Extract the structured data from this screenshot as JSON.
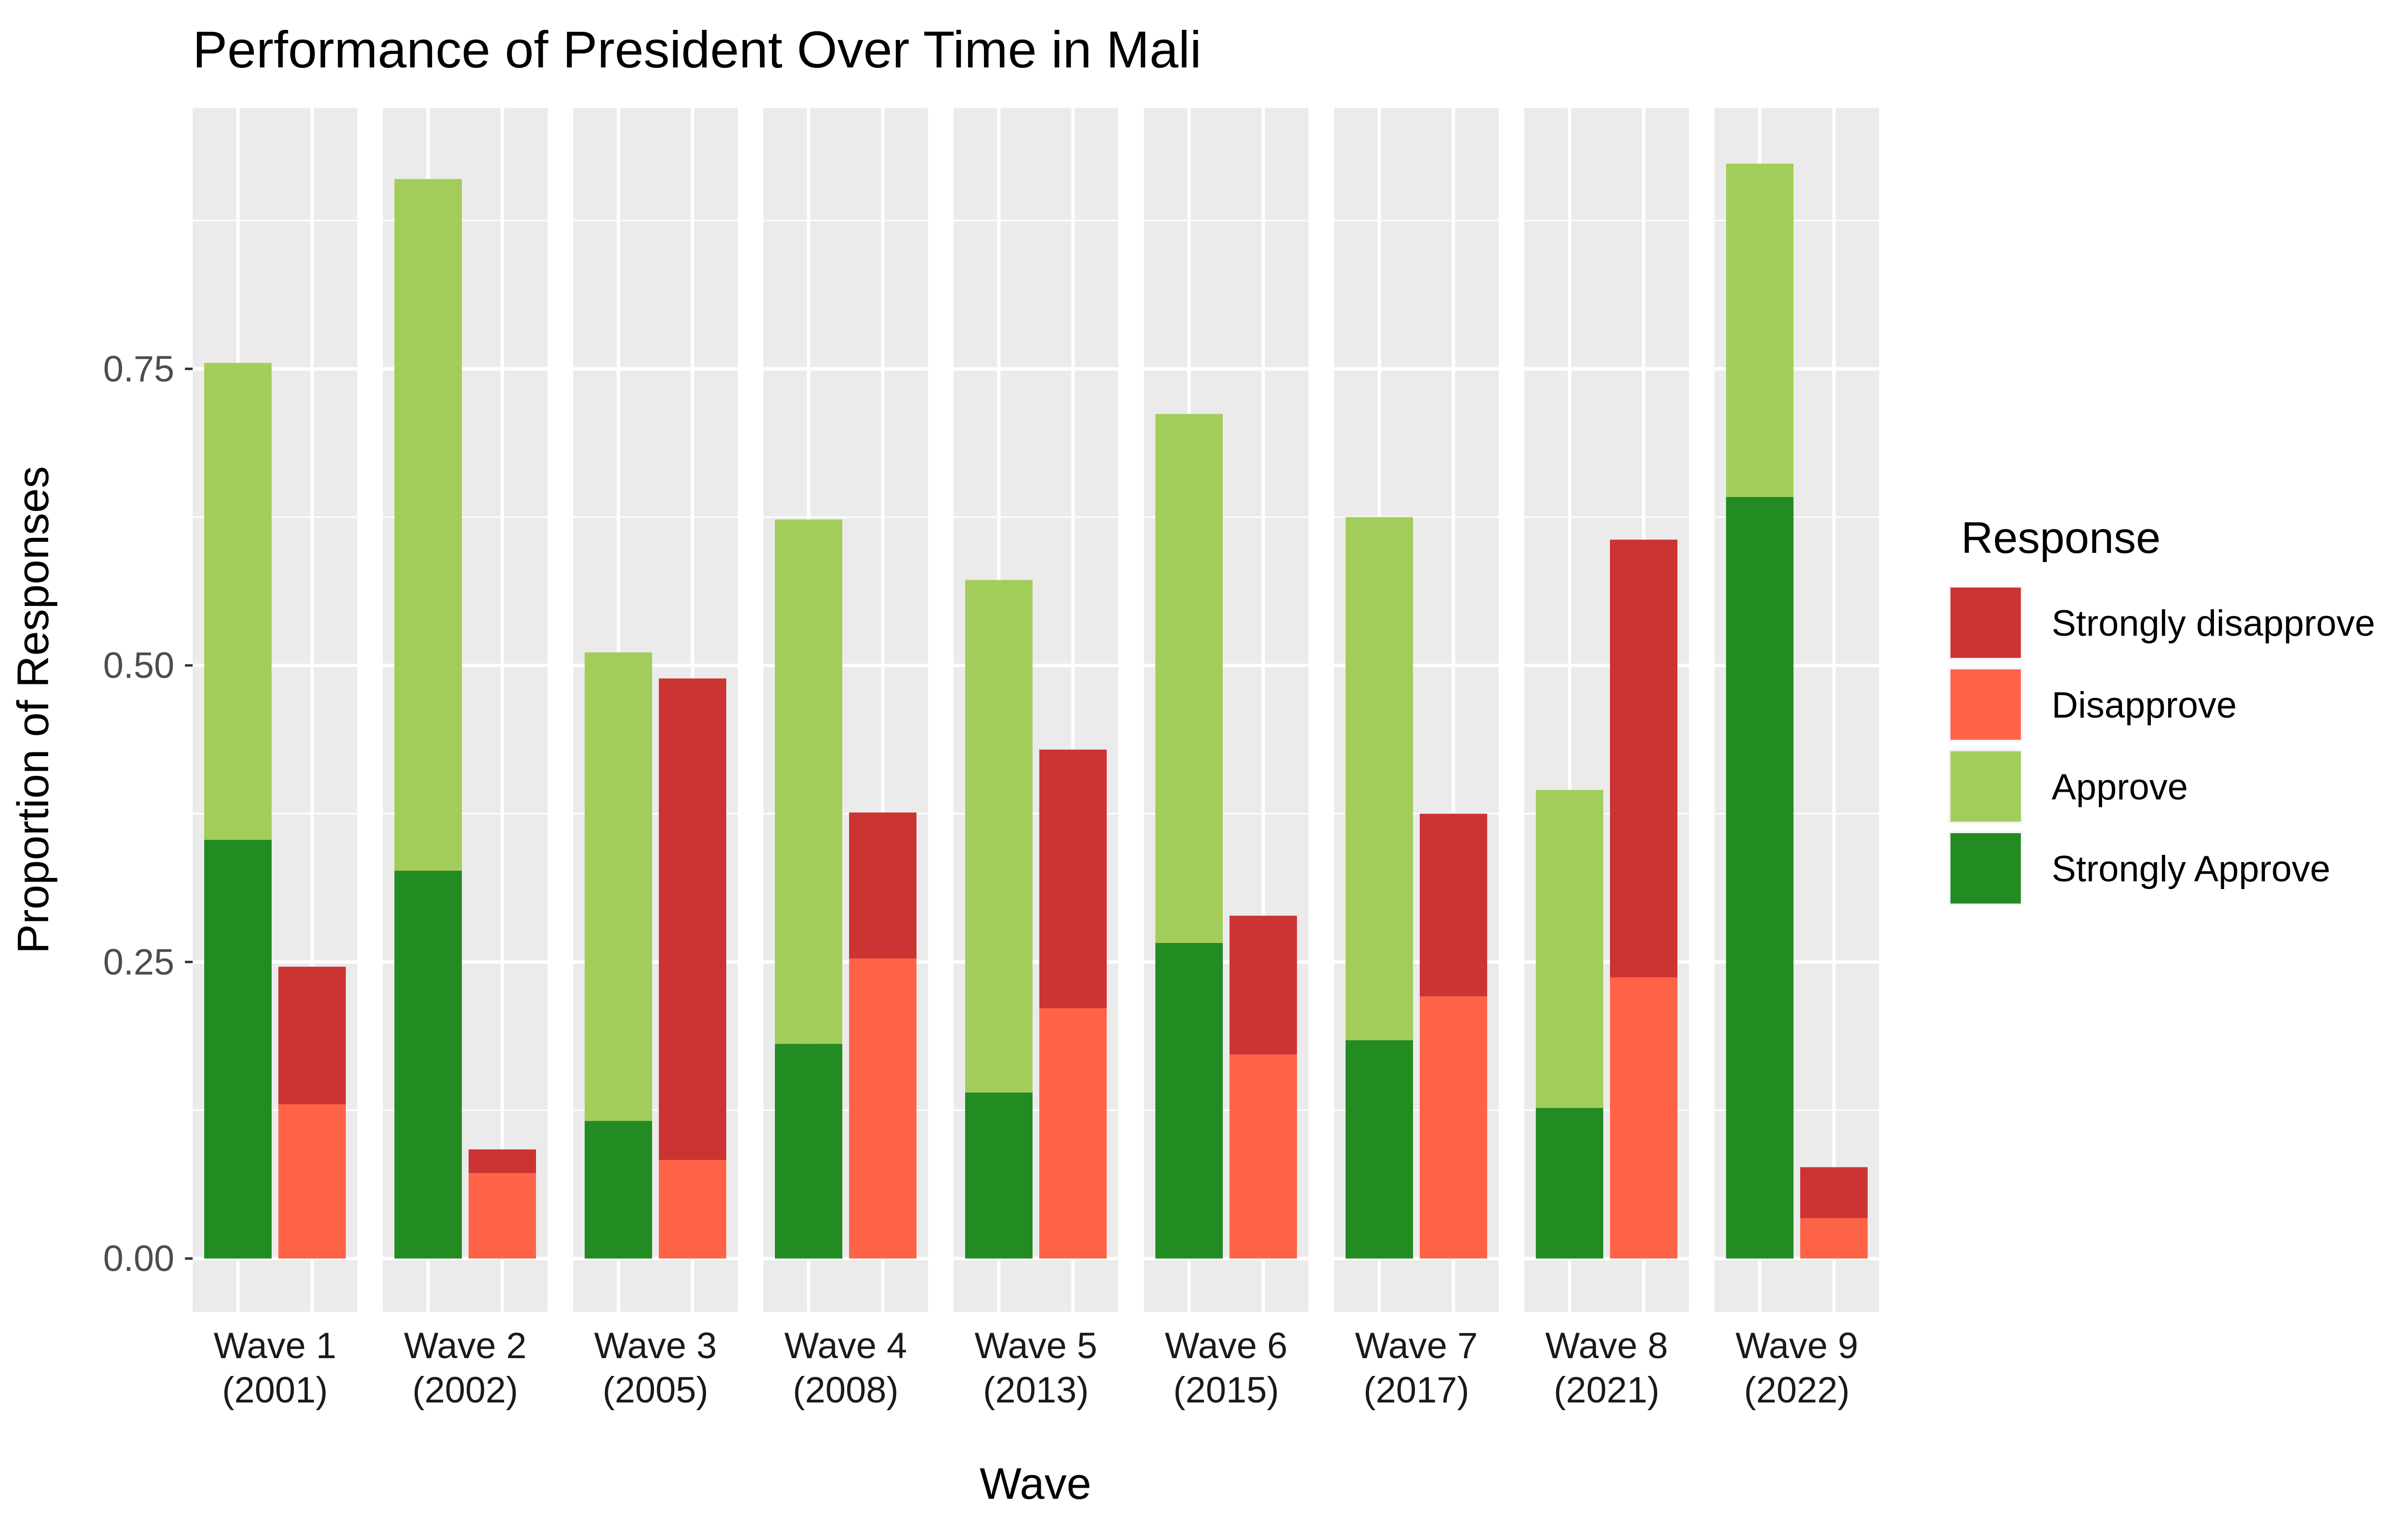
{
  "chart_data": {
    "type": "bar",
    "title": "Performance of President Over Time in Mali",
    "xlabel": "Wave",
    "ylabel": "Proportion of Responses",
    "ylim": [
      -0.045,
      0.97
    ],
    "yticks": [
      0,
      0.25,
      0.5,
      0.75
    ],
    "ytick_labels": [
      "0.00",
      "0.25",
      "0.50",
      "0.75"
    ],
    "grid": true,
    "legend_position": "right",
    "legend": {
      "title": "Response",
      "entries": [
        {
          "key": "strongly_disapprove",
          "label": "Strongly disapprove",
          "color": "#CC3333"
        },
        {
          "key": "disapprove",
          "label": "Disapprove",
          "color": "#FF6347"
        },
        {
          "key": "approve",
          "label": "Approve",
          "color": "#A2CD5A"
        },
        {
          "key": "strongly_approve",
          "label": "Strongly Approve",
          "color": "#228B22"
        }
      ]
    },
    "waves": [
      {
        "label1": "Wave 1",
        "label2": "(2001)",
        "strongly_approve": 0.353,
        "approve": 0.402,
        "disapprove": 0.13,
        "strongly_disapprove": 0.116
      },
      {
        "label1": "Wave 2",
        "label2": "(2002)",
        "strongly_approve": 0.327,
        "approve": 0.583,
        "disapprove": 0.072,
        "strongly_disapprove": 0.02
      },
      {
        "label1": "Wave 3",
        "label2": "(2005)",
        "strongly_approve": 0.116,
        "approve": 0.395,
        "disapprove": 0.083,
        "strongly_disapprove": 0.406
      },
      {
        "label1": "Wave 4",
        "label2": "(2008)",
        "strongly_approve": 0.181,
        "approve": 0.442,
        "disapprove": 0.253,
        "strongly_disapprove": 0.123
      },
      {
        "label1": "Wave 5",
        "label2": "(2013)",
        "strongly_approve": 0.14,
        "approve": 0.432,
        "disapprove": 0.211,
        "strongly_disapprove": 0.218
      },
      {
        "label1": "Wave 6",
        "label2": "(2015)",
        "strongly_approve": 0.266,
        "approve": 0.446,
        "disapprove": 0.172,
        "strongly_disapprove": 0.117
      },
      {
        "label1": "Wave 7",
        "label2": "(2017)",
        "strongly_approve": 0.184,
        "approve": 0.441,
        "disapprove": 0.221,
        "strongly_disapprove": 0.154
      },
      {
        "label1": "Wave 8",
        "label2": "(2021)",
        "strongly_approve": 0.127,
        "approve": 0.268,
        "disapprove": 0.237,
        "strongly_disapprove": 0.369
      },
      {
        "label1": "Wave 9",
        "label2": "(2022)",
        "strongly_approve": 0.642,
        "approve": 0.281,
        "disapprove": 0.034,
        "strongly_disapprove": 0.043
      }
    ]
  }
}
